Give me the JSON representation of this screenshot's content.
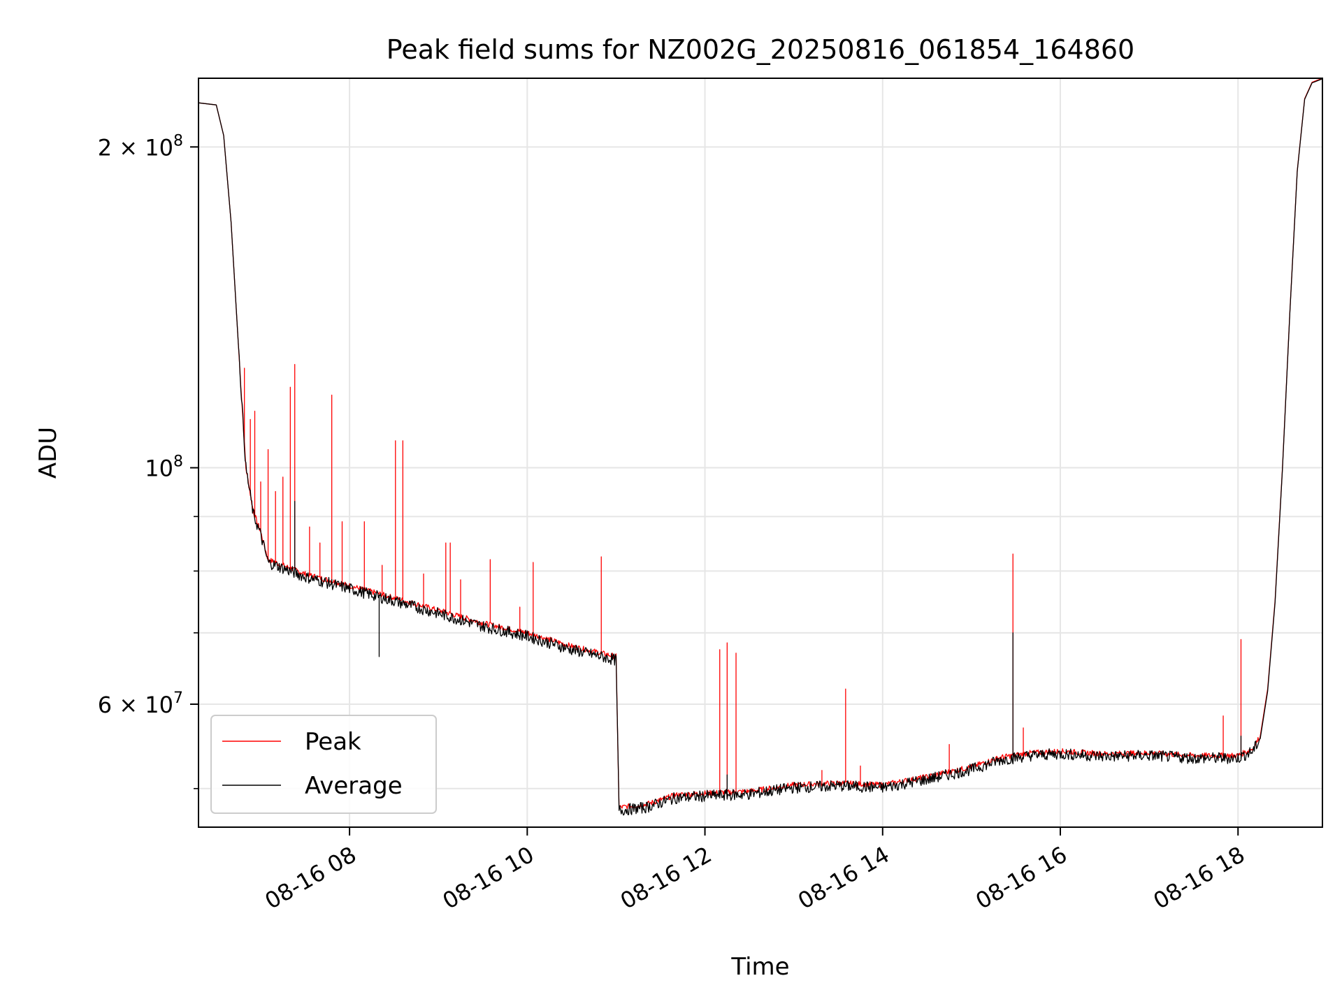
{
  "chart_data": {
    "type": "line",
    "title": "Peak field sums for NZ002G_20250816_061854_164860",
    "xlabel": "Time",
    "ylabel": "ADU",
    "yscale": "log",
    "xlim": [
      "2025-08-16 06:18",
      "2025-08-16 18:57"
    ],
    "ylim": [
      46000000,
      232000000
    ],
    "grid": true,
    "legend_position": "lower-left",
    "x_ticks": [
      {
        "value": "2025-08-16 08:00",
        "label": "08-16 08"
      },
      {
        "value": "2025-08-16 10:00",
        "label": "08-16 10"
      },
      {
        "value": "2025-08-16 12:00",
        "label": "08-16 12"
      },
      {
        "value": "2025-08-16 14:00",
        "label": "08-16 14"
      },
      {
        "value": "2025-08-16 16:00",
        "label": "08-16 16"
      },
      {
        "value": "2025-08-16 18:00",
        "label": "08-16 18"
      }
    ],
    "y_major_ticks": [
      {
        "value": 60000000,
        "mantissa": "6",
        "exponent": "7"
      },
      {
        "value": 100000000,
        "mantissa": "",
        "exponent": "8"
      },
      {
        "value": 200000000,
        "mantissa": "2",
        "exponent": "8"
      }
    ],
    "y_minor_ticks": [
      50000000,
      70000000,
      80000000,
      90000000
    ],
    "series": [
      {
        "name": "Peak",
        "color": "#ff0000",
        "baseline": [
          [
            "2025-08-16 06:18",
            220000000
          ],
          [
            "2025-08-16 06:30",
            219000000
          ],
          [
            "2025-08-16 06:35",
            205000000
          ],
          [
            "2025-08-16 06:40",
            170000000
          ],
          [
            "2025-08-16 06:45",
            130000000
          ],
          [
            "2025-08-16 06:50",
            100000000
          ],
          [
            "2025-08-16 06:55",
            91000000
          ],
          [
            "2025-08-16 07:00",
            87000000
          ],
          [
            "2025-08-16 07:05",
            82000000
          ],
          [
            "2025-08-16 07:30",
            79500000
          ],
          [
            "2025-08-16 08:00",
            77500000
          ],
          [
            "2025-08-16 08:30",
            75500000
          ],
          [
            "2025-08-16 09:00",
            73500000
          ],
          [
            "2025-08-16 09:30",
            71500000
          ],
          [
            "2025-08-16 10:00",
            70000000
          ],
          [
            "2025-08-16 10:30",
            68000000
          ],
          [
            "2025-08-16 11:00",
            66500000
          ],
          [
            "2025-08-16 11:02",
            48000000
          ],
          [
            "2025-08-16 11:20",
            48300000
          ],
          [
            "2025-08-16 11:40",
            49300000
          ],
          [
            "2025-08-16 12:00",
            49500000
          ],
          [
            "2025-08-16 12:30",
            49700000
          ],
          [
            "2025-08-16 13:00",
            50400000
          ],
          [
            "2025-08-16 13:30",
            50600000
          ],
          [
            "2025-08-16 14:00",
            50400000
          ],
          [
            "2025-08-16 14:30",
            51300000
          ],
          [
            "2025-08-16 15:00",
            52400000
          ],
          [
            "2025-08-16 15:20",
            53500000
          ],
          [
            "2025-08-16 15:40",
            54000000
          ],
          [
            "2025-08-16 16:00",
            54200000
          ],
          [
            "2025-08-16 16:30",
            53900000
          ],
          [
            "2025-08-16 17:00",
            54000000
          ],
          [
            "2025-08-16 17:30",
            53700000
          ],
          [
            "2025-08-16 18:00",
            53700000
          ],
          [
            "2025-08-16 18:10",
            54500000
          ],
          [
            "2025-08-16 18:15",
            56000000
          ],
          [
            "2025-08-16 18:20",
            62000000
          ],
          [
            "2025-08-16 18:25",
            75000000
          ],
          [
            "2025-08-16 18:30",
            100000000
          ],
          [
            "2025-08-16 18:35",
            140000000
          ],
          [
            "2025-08-16 18:40",
            190000000
          ],
          [
            "2025-08-16 18:45",
            222000000
          ],
          [
            "2025-08-16 18:50",
            230000000
          ],
          [
            "2025-08-16 18:57",
            232000000
          ]
        ],
        "spikes": [
          [
            "2025-08-16 06:49",
            124000000
          ],
          [
            "2025-08-16 06:53",
            111000000
          ],
          [
            "2025-08-16 06:56",
            113000000
          ],
          [
            "2025-08-16 07:00",
            97000000
          ],
          [
            "2025-08-16 07:05",
            104000000
          ],
          [
            "2025-08-16 07:10",
            95000000
          ],
          [
            "2025-08-16 07:15",
            98000000
          ],
          [
            "2025-08-16 07:20",
            119000000
          ],
          [
            "2025-08-16 07:23",
            125000000
          ],
          [
            "2025-08-16 07:33",
            88000000
          ],
          [
            "2025-08-16 07:40",
            85000000
          ],
          [
            "2025-08-16 07:48",
            117000000
          ],
          [
            "2025-08-16 07:55",
            89000000
          ],
          [
            "2025-08-16 08:10",
            89000000
          ],
          [
            "2025-08-16 08:22",
            81000000
          ],
          [
            "2025-08-16 08:31",
            106000000
          ],
          [
            "2025-08-16 08:36",
            106000000
          ],
          [
            "2025-08-16 08:50",
            79500000
          ],
          [
            "2025-08-16 09:05",
            85000000
          ],
          [
            "2025-08-16 09:08",
            85000000
          ],
          [
            "2025-08-16 09:15",
            78500000
          ],
          [
            "2025-08-16 09:35",
            82000000
          ],
          [
            "2025-08-16 09:55",
            74000000
          ],
          [
            "2025-08-16 10:04",
            81500000
          ],
          [
            "2025-08-16 10:50",
            82500000
          ],
          [
            "2025-08-16 12:10",
            67500000
          ],
          [
            "2025-08-16 12:15",
            68500000
          ],
          [
            "2025-08-16 12:21",
            67000000
          ],
          [
            "2025-08-16 13:19",
            52000000
          ],
          [
            "2025-08-16 13:35",
            62000000
          ],
          [
            "2025-08-16 13:45",
            52500000
          ],
          [
            "2025-08-16 14:45",
            55000000
          ],
          [
            "2025-08-16 15:28",
            83000000
          ],
          [
            "2025-08-16 15:35",
            57000000
          ],
          [
            "2025-08-16 17:50",
            58500000
          ],
          [
            "2025-08-16 18:02",
            69000000
          ]
        ]
      },
      {
        "name": "Average",
        "color": "#000000",
        "baseline": [
          [
            "2025-08-16 06:18",
            220000000
          ],
          [
            "2025-08-16 06:30",
            219000000
          ],
          [
            "2025-08-16 06:35",
            205000000
          ],
          [
            "2025-08-16 06:40",
            170000000
          ],
          [
            "2025-08-16 06:45",
            130000000
          ],
          [
            "2025-08-16 06:50",
            100000000
          ],
          [
            "2025-08-16 06:55",
            90500000
          ],
          [
            "2025-08-16 07:00",
            86500000
          ],
          [
            "2025-08-16 07:05",
            81500000
          ],
          [
            "2025-08-16 07:30",
            79000000
          ],
          [
            "2025-08-16 08:00",
            77000000
          ],
          [
            "2025-08-16 08:30",
            75000000
          ],
          [
            "2025-08-16 09:00",
            73000000
          ],
          [
            "2025-08-16 09:30",
            71000000
          ],
          [
            "2025-08-16 10:00",
            69500000
          ],
          [
            "2025-08-16 10:30",
            67500000
          ],
          [
            "2025-08-16 11:00",
            66000000
          ],
          [
            "2025-08-16 11:02",
            47700000
          ],
          [
            "2025-08-16 11:20",
            48000000
          ],
          [
            "2025-08-16 11:40",
            49000000
          ],
          [
            "2025-08-16 12:00",
            49200000
          ],
          [
            "2025-08-16 12:30",
            49400000
          ],
          [
            "2025-08-16 13:00",
            50100000
          ],
          [
            "2025-08-16 13:30",
            50300000
          ],
          [
            "2025-08-16 14:00",
            50100000
          ],
          [
            "2025-08-16 14:30",
            51000000
          ],
          [
            "2025-08-16 15:00",
            52100000
          ],
          [
            "2025-08-16 15:20",
            53200000
          ],
          [
            "2025-08-16 15:40",
            53700000
          ],
          [
            "2025-08-16 16:00",
            53900000
          ],
          [
            "2025-08-16 16:30",
            53600000
          ],
          [
            "2025-08-16 17:00",
            53700000
          ],
          [
            "2025-08-16 17:30",
            53400000
          ],
          [
            "2025-08-16 18:00",
            53400000
          ],
          [
            "2025-08-16 18:10",
            54200000
          ],
          [
            "2025-08-16 18:15",
            55700000
          ],
          [
            "2025-08-16 18:20",
            61700000
          ],
          [
            "2025-08-16 18:25",
            74700000
          ],
          [
            "2025-08-16 18:30",
            99700000
          ],
          [
            "2025-08-16 18:35",
            139700000
          ],
          [
            "2025-08-16 18:40",
            189700000
          ],
          [
            "2025-08-16 18:45",
            221700000
          ],
          [
            "2025-08-16 18:50",
            229700000
          ],
          [
            "2025-08-16 18:57",
            231700000
          ]
        ],
        "spikes": [
          [
            "2025-08-16 07:23",
            93000000
          ],
          [
            "2025-08-16 08:20",
            66500000
          ],
          [
            "2025-08-16 12:15",
            51500000
          ],
          [
            "2025-08-16 15:28",
            70000000
          ],
          [
            "2025-08-16 18:02",
            56000000
          ]
        ]
      }
    ]
  }
}
